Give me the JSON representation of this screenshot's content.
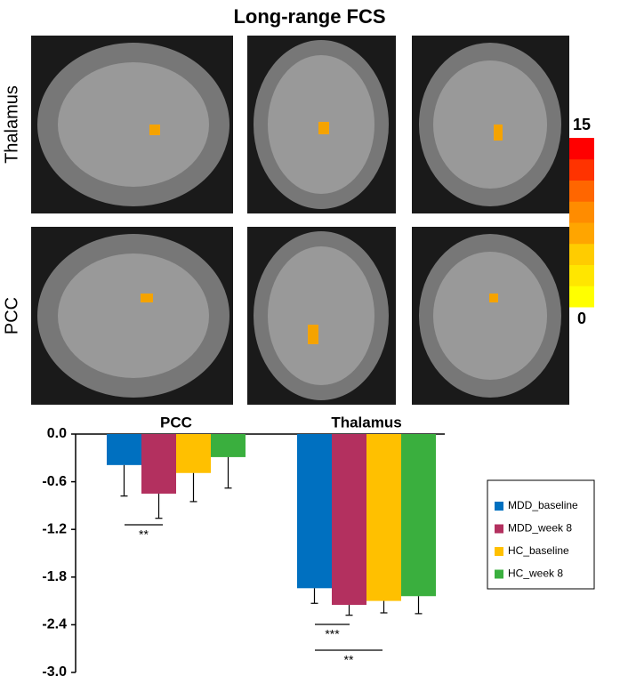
{
  "title": "Long-range FCS",
  "row_labels": [
    "Thalamus",
    "PCC"
  ],
  "colorbar": {
    "lim": [
      0,
      15
    ],
    "ticks": [
      0,
      15
    ]
  },
  "chart_data": {
    "type": "bar",
    "categories": [
      "PCC",
      "Thalamus"
    ],
    "series": [
      {
        "name": "MDD_baseline",
        "color": "#0070c0",
        "values": [
          -0.39,
          -1.94
        ],
        "errors": [
          0.39,
          0.19
        ]
      },
      {
        "name": "MDD_week 8",
        "color": "#b3305f",
        "values": [
          -0.75,
          -2.15
        ],
        "errors": [
          0.31,
          0.13
        ]
      },
      {
        "name": "HC_baseline",
        "color": "#ffc000",
        "values": [
          -0.49,
          -2.1
        ],
        "errors": [
          0.36,
          0.15
        ]
      },
      {
        "name": "HC_week 8",
        "color": "#3aaf3e",
        "values": [
          -0.29,
          -2.04
        ],
        "errors": [
          0.39,
          0.22
        ]
      }
    ],
    "ylim": [
      0,
      -3
    ],
    "yticks": [
      {
        "value": 0,
        "label": "0.0"
      },
      -0.6,
      -1.2,
      -1.8,
      -2.4,
      {
        "value": -3,
        "label": "-3.0"
      }
    ],
    "annotations": [
      "**",
      "***",
      "**"
    ],
    "grid": false,
    "legend": "right"
  }
}
